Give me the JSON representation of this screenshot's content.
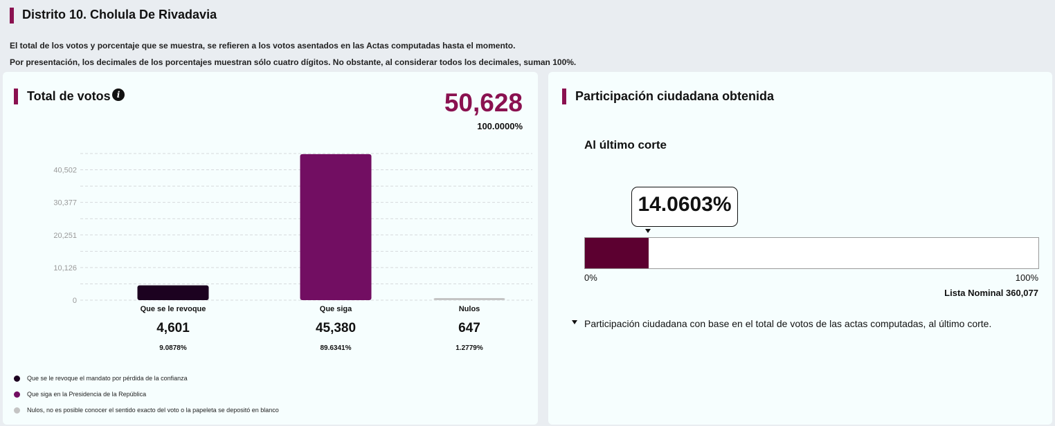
{
  "header": {
    "title": "Distrito 10. Cholula De Rivadavia",
    "note1": "El total de los votos y porcentaje que se muestra, se refieren a los votos asentados en las Actas computadas hasta el momento.",
    "note2": "Por presentación, los decimales de los porcentajes muestran sólo cuatro dígitos. No obstante, al considerar todos los decimales, suman 100%."
  },
  "left_panel": {
    "title": "Total de votos",
    "info_icon": "info-icon",
    "total": "50,628",
    "total_pct": "100.0000%",
    "categories": [
      {
        "label": "Que se le revoque",
        "value_text": "4,601",
        "pct": "9.0878%"
      },
      {
        "label": "Que siga",
        "value_text": "45,380",
        "pct": "89.6341%"
      },
      {
        "label": "Nulos",
        "value_text": "647",
        "pct": "1.2779%"
      }
    ],
    "legend": [
      {
        "text": "Que se le revoque el mandato por pérdida de la confianza",
        "color": "#1c0220"
      },
      {
        "text": "Que siga en la Presidencia de la República",
        "color": "#720e62"
      },
      {
        "text": "Nulos, no es posible conocer el sentido exacto del voto o la papeleta se depositó en blanco",
        "color": "#c4c4c4"
      }
    ]
  },
  "chart_data": {
    "type": "bar",
    "categories": [
      "Que se le revoque",
      "Que siga",
      "Nulos"
    ],
    "values": [
      4601,
      45380,
      647
    ],
    "colors": [
      "#1c0220",
      "#720e62",
      "#c4c4c4"
    ],
    "y_ticks": [
      "0",
      "10,126",
      "20,251",
      "30,377",
      "40,502"
    ],
    "y_tick_values": [
      0,
      10126,
      20251,
      30377,
      40502
    ],
    "ylim": [
      0,
      45566
    ],
    "grid": true
  },
  "right_panel": {
    "title": "Participación ciudadana obtenida",
    "subheading": "Al último corte",
    "participation_pct": "14.0603%",
    "participation_fraction": 0.140603,
    "fill_color": "#5c0030",
    "scale_min": "0%",
    "scale_max": "100%",
    "lista_nominal": "Lista Nominal 360,077",
    "footnote": "Participación ciudadana con base en el total de votos de las actas computadas, al último corte."
  }
}
